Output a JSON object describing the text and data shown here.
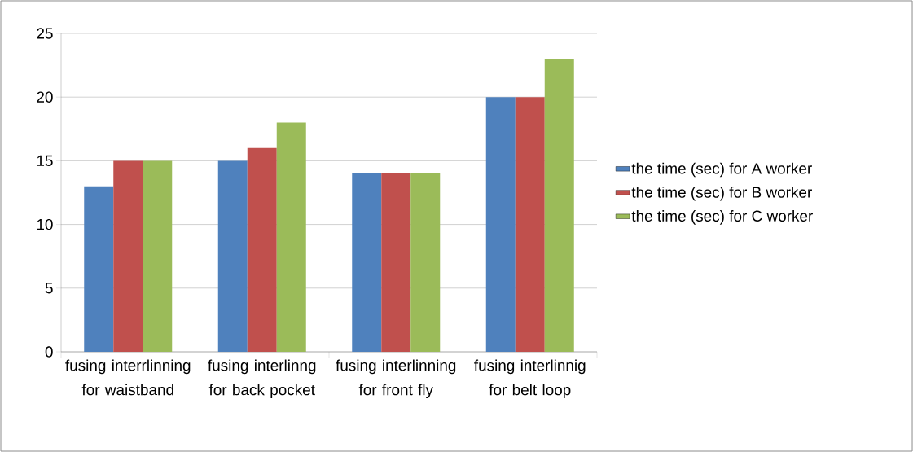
{
  "chart_data": {
    "type": "bar",
    "categories": [
      "fusing interrlinning for waistband",
      "fusing interlinng for back pocket",
      "fusing interlinning for front fly",
      "fusing interlinnig for belt loop"
    ],
    "series": [
      {
        "name": "the time (sec) for A worker",
        "color": "#4f81bd",
        "values": [
          13,
          15,
          14,
          20
        ]
      },
      {
        "name": "the time (sec) for B worker",
        "color": "#c0504d",
        "values": [
          15,
          16,
          14,
          20
        ]
      },
      {
        "name": "the time (sec) for C worker",
        "color": "#9bbb59",
        "values": [
          15,
          18,
          14,
          23
        ]
      }
    ],
    "ylim": [
      0,
      25
    ],
    "yticks": [
      0,
      5,
      10,
      15,
      20,
      25
    ],
    "grid": "y",
    "legend": "right"
  }
}
